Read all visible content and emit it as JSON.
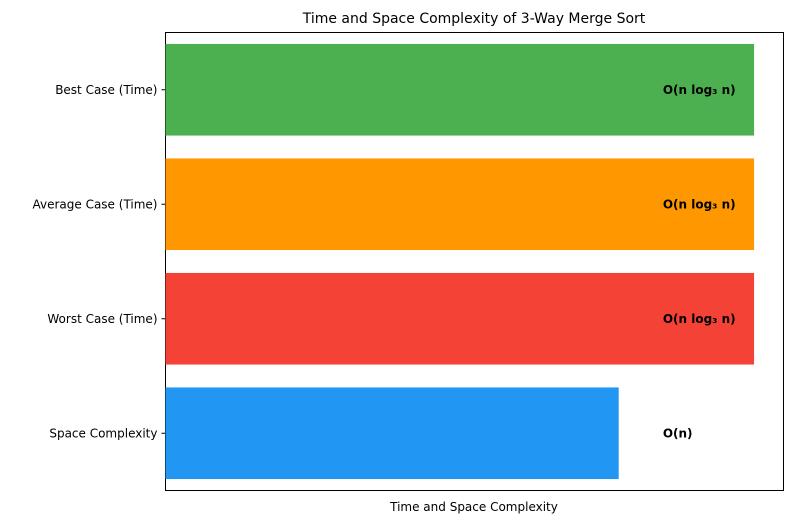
{
  "chart_data": {
    "type": "bar",
    "orientation": "horizontal",
    "title": "Time and Space Complexity of 3-Way Merge Sort",
    "xlabel": "Time and Space Complexity",
    "ylabel": "",
    "x_ticks_visible": false,
    "grid": false,
    "legend": false,
    "xlim": [
      0,
      1.05
    ],
    "categories": [
      "Best Case (Time)",
      "Average Case (Time)",
      "Worst Case (Time)",
      "Space Complexity"
    ],
    "values": [
      1.0,
      1.0,
      1.0,
      0.77
    ],
    "bar_labels": [
      "O(n log₃ n)",
      "O(n log₃ n)",
      "O(n log₃ n)",
      "O(n)"
    ],
    "colors": [
      "#4caf50",
      "#ff9800",
      "#f44336",
      "#2196f3"
    ]
  }
}
